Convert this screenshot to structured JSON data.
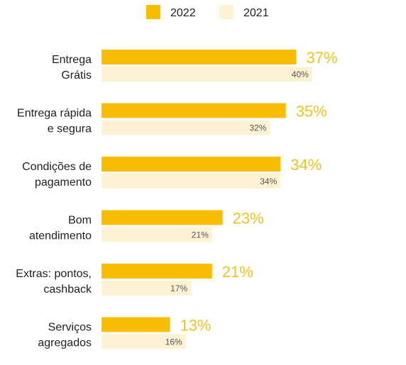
{
  "chart_data": {
    "type": "bar",
    "orientation": "horizontal",
    "title": "",
    "xlabel": "",
    "ylabel": "",
    "xlim": [
      0,
      40
    ],
    "grid": false,
    "legend": "top-center",
    "categories": [
      [
        "Entrega",
        "Grátis"
      ],
      [
        "Entrega rápida",
        "e segura"
      ],
      [
        "Condições de",
        "pagamento"
      ],
      [
        "Bom",
        "atendimento"
      ],
      [
        "Extras: pontos,",
        "cashback"
      ],
      [
        "Serviços",
        "agregados"
      ]
    ],
    "series": [
      {
        "name": "2022",
        "color": "#FBBC04",
        "label_color": "#F4C21B",
        "values": [
          37,
          35,
          34,
          23,
          21,
          13
        ],
        "labels": [
          "37%",
          "35%",
          "34%",
          "23%",
          "21%",
          "13%"
        ]
      },
      {
        "name": "2021",
        "color": "#FDF2D4",
        "label_color": "#555555",
        "values": [
          40,
          32,
          34,
          21,
          17,
          16
        ],
        "labels": [
          "40%",
          "32%",
          "34%",
          "21%",
          "17%",
          "16%"
        ]
      }
    ]
  }
}
